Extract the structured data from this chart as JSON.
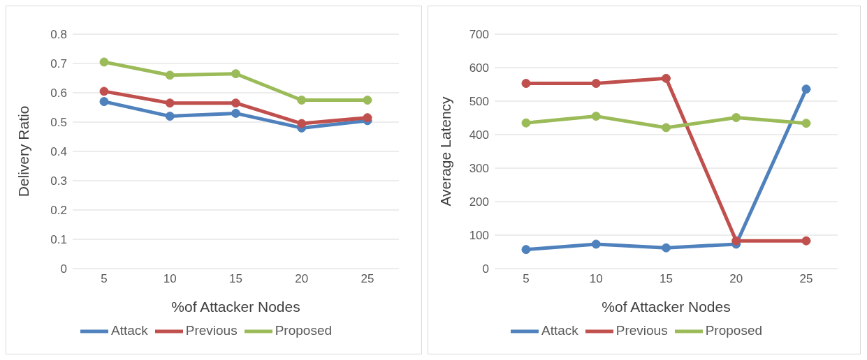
{
  "chart_data": [
    {
      "type": "line",
      "categories": [
        "5",
        "10",
        "15",
        "20",
        "25"
      ],
      "xlabel": "%of Attacker Nodes",
      "ylabel": "Delivery Ratio",
      "ylim": [
        0,
        0.8
      ],
      "yticks": [
        0,
        0.1,
        0.2,
        0.3,
        0.4,
        0.5,
        0.6,
        0.7,
        0.8
      ],
      "grid": "y",
      "legend": "bottom",
      "marker": "circle",
      "series": [
        {
          "name": "Attack",
          "color": "#4f81bd",
          "values": [
            0.57,
            0.52,
            0.53,
            0.48,
            0.505
          ]
        },
        {
          "name": "Previous",
          "color": "#c0504d",
          "values": [
            0.605,
            0.565,
            0.565,
            0.495,
            0.515
          ]
        },
        {
          "name": "Proposed",
          "color": "#9bbb59",
          "values": [
            0.705,
            0.66,
            0.665,
            0.575,
            0.575
          ]
        }
      ]
    },
    {
      "type": "line",
      "categories": [
        "5",
        "10",
        "15",
        "20",
        "25"
      ],
      "xlabel": "%of Attacker Nodes",
      "ylabel": "Average Latency",
      "ylim": [
        0,
        700
      ],
      "yticks": [
        0,
        100,
        200,
        300,
        400,
        500,
        600,
        700
      ],
      "grid": "y",
      "legend": "bottom",
      "marker": "circle",
      "series": [
        {
          "name": "Attack",
          "color": "#4f81bd",
          "values": [
            57,
            73,
            62,
            73,
            536
          ]
        },
        {
          "name": "Previous",
          "color": "#c0504d",
          "values": [
            553,
            553,
            568,
            83,
            83
          ]
        },
        {
          "name": "Proposed",
          "color": "#9bbb59",
          "values": [
            435,
            455,
            421,
            451,
            434
          ]
        }
      ]
    }
  ]
}
